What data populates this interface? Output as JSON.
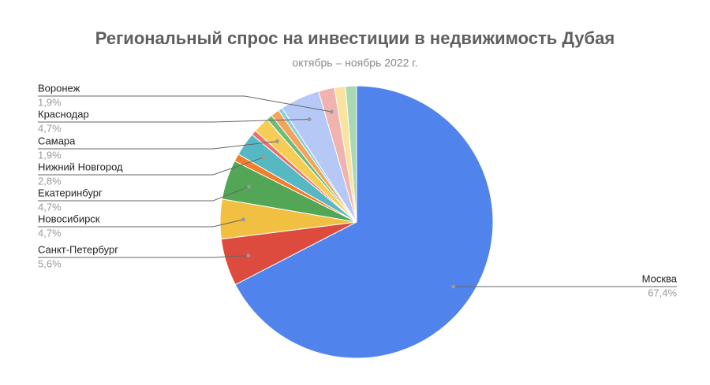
{
  "chart_data": {
    "type": "pie",
    "title": "Региональный спрос на инвестиции в недвижимость Дубая",
    "subtitle": "октябрь – ноябрь 2022 г.",
    "categories": [
      "Москва",
      "Санкт-Петербург",
      "Новосибирск",
      "Екатеринбург",
      null,
      "Нижний Новгород",
      null,
      "Самара",
      null,
      null,
      null,
      "Краснодар",
      "Воронеж",
      null,
      null
    ],
    "values": [
      67.4,
      5.6,
      4.7,
      4.7,
      0.9,
      2.8,
      0.6,
      1.9,
      0.7,
      1.0,
      0.5,
      4.7,
      1.9,
      1.3,
      1.3
    ],
    "value_labels": [
      "67,4%",
      "5,6%",
      "4,7%",
      "4,7%",
      null,
      "2,8%",
      null,
      "1,9%",
      null,
      null,
      null,
      "4,7%",
      "1,9%",
      null,
      null
    ],
    "colors": [
      "#5083ec",
      "#dc4b3e",
      "#f1c042",
      "#52a656",
      "#f07e2a",
      "#55b8c2",
      "#e8736b",
      "#f5cd55",
      "#6dbb76",
      "#f4a35a",
      "#86d0d6",
      "#b6c8f6",
      "#f0b3b0",
      "#fae3a0",
      "#a9d9b3"
    ]
  }
}
